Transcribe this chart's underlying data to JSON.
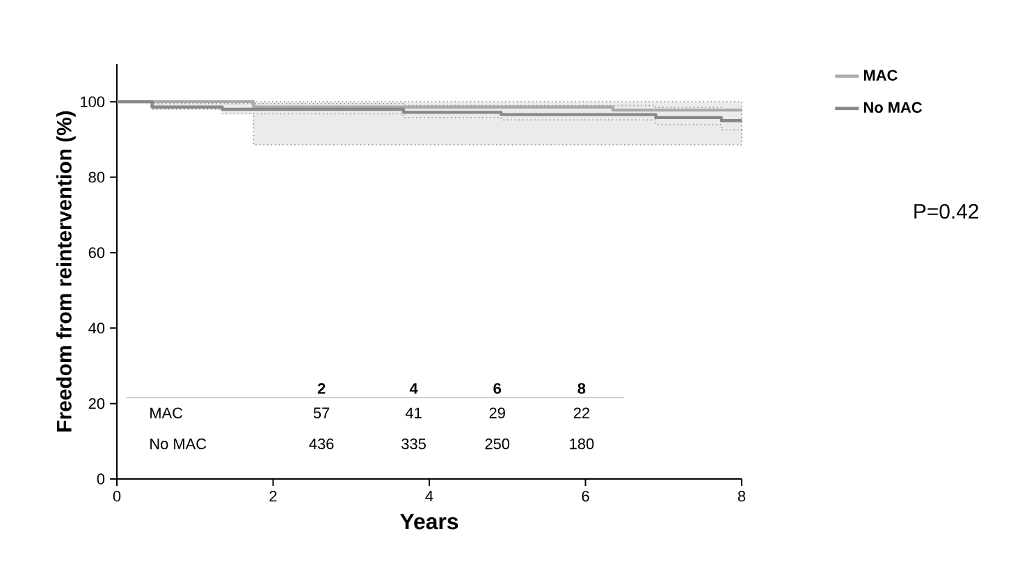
{
  "chart_data": {
    "type": "step",
    "xlabel": "Years",
    "ylabel": "Freedom from reintervention (%)",
    "xlim": [
      0,
      8
    ],
    "xticks": [
      0,
      2,
      4,
      6,
      8
    ],
    "ylim": [
      0,
      110
    ],
    "yticks": [
      0,
      20,
      40,
      60,
      80,
      100
    ],
    "legend": "right",
    "grid": false,
    "series": [
      {
        "name": "MAC",
        "color": "#aaaaaa",
        "x": [
          0,
          1.75,
          6.35,
          8
        ],
        "values": [
          100,
          98.6,
          97.8,
          97.8
        ],
        "lower": [
          100,
          88.6,
          88.6,
          88.6
        ],
        "upper": [
          100,
          100,
          100,
          100
        ]
      },
      {
        "name": "No MAC",
        "color": "#888888",
        "x": [
          0,
          0.45,
          1.35,
          3.67,
          4.92,
          6.9,
          7.74,
          8
        ],
        "values": [
          100,
          98.6,
          98.0,
          97.2,
          96.6,
          95.8,
          95.0,
          95.0
        ],
        "lower": [
          100,
          98.0,
          96.8,
          95.8,
          95.2,
          94.0,
          92.5,
          92.0
        ],
        "upper": [
          100,
          99.5,
          99.5,
          99.0,
          99.0,
          98.5,
          98.0,
          98.0
        ]
      }
    ],
    "annotations": [
      "P=0.42",
      "2",
      "4",
      "6",
      "8",
      "MAC",
      "57",
      "41",
      "29",
      "22",
      "No MAC",
      "436",
      "335",
      "250",
      "180"
    ]
  }
}
